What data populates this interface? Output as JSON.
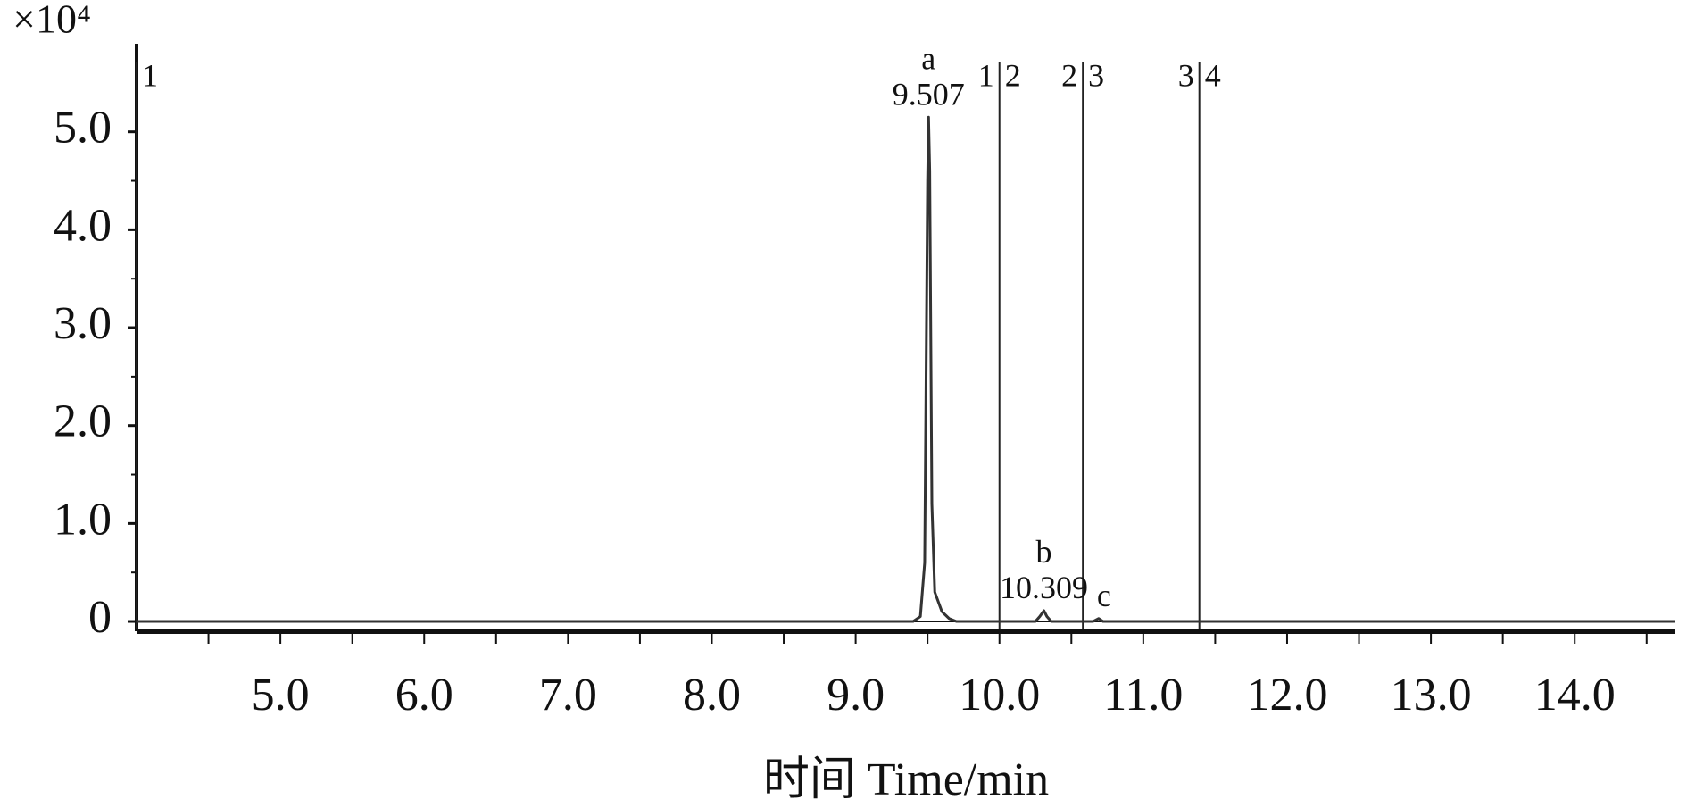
{
  "chart_data": {
    "type": "line",
    "y_multiplier": "×10⁴",
    "x_label": "时间 Time/min",
    "xlim": [
      4.0,
      14.7
    ],
    "ylim": [
      -0.1,
      5.9
    ],
    "xticks": [
      {
        "value": 5,
        "label": "5.0"
      },
      {
        "value": 6,
        "label": "6.0"
      },
      {
        "value": 7,
        "label": "7.0"
      },
      {
        "value": 8,
        "label": "8.0"
      },
      {
        "value": 9,
        "label": "9.0"
      },
      {
        "value": 10,
        "label": "10.0"
      },
      {
        "value": 11,
        "label": "11.0"
      },
      {
        "value": 12,
        "label": "12.0"
      },
      {
        "value": 13,
        "label": "13.0"
      },
      {
        "value": 14,
        "label": "14.0"
      }
    ],
    "yticks": [
      0,
      {
        "value": 1,
        "label": "1.0"
      },
      {
        "value": 2,
        "label": "2.0"
      },
      {
        "value": 3,
        "label": "3.0"
      },
      {
        "value": 4,
        "label": "4.0"
      },
      {
        "value": 5,
        "label": "5.0"
      }
    ],
    "grid": false,
    "series": [
      {
        "color": "#333333",
        "x": [
          4.0,
          9.4,
          9.45,
          9.48,
          9.5,
          9.507,
          9.515,
          9.53,
          9.55,
          9.6,
          9.65,
          9.7,
          10.25,
          10.28,
          10.309,
          10.33,
          10.36,
          10.65,
          10.69,
          10.72,
          14.7
        ],
        "values": [
          0,
          0,
          0.05,
          0.6,
          4.5,
          5.15,
          4.6,
          1.2,
          0.3,
          0.1,
          0.03,
          0,
          0,
          0.05,
          0.11,
          0.05,
          0,
          0,
          0.03,
          0,
          0
        ]
      }
    ],
    "peaks": [
      {
        "label": "a",
        "rt": 9.507
      },
      {
        "label": "b",
        "rt": 10.309
      },
      {
        "label": "c",
        "x": 10.69
      }
    ],
    "markers": [
      {
        "x": 4.0,
        "right": "1"
      },
      {
        "x": 10.0,
        "left": "1",
        "right": "2"
      },
      {
        "x": 10.58,
        "left": "2",
        "right": "3"
      },
      {
        "x": 11.39,
        "left": "3",
        "right": "4"
      }
    ]
  }
}
